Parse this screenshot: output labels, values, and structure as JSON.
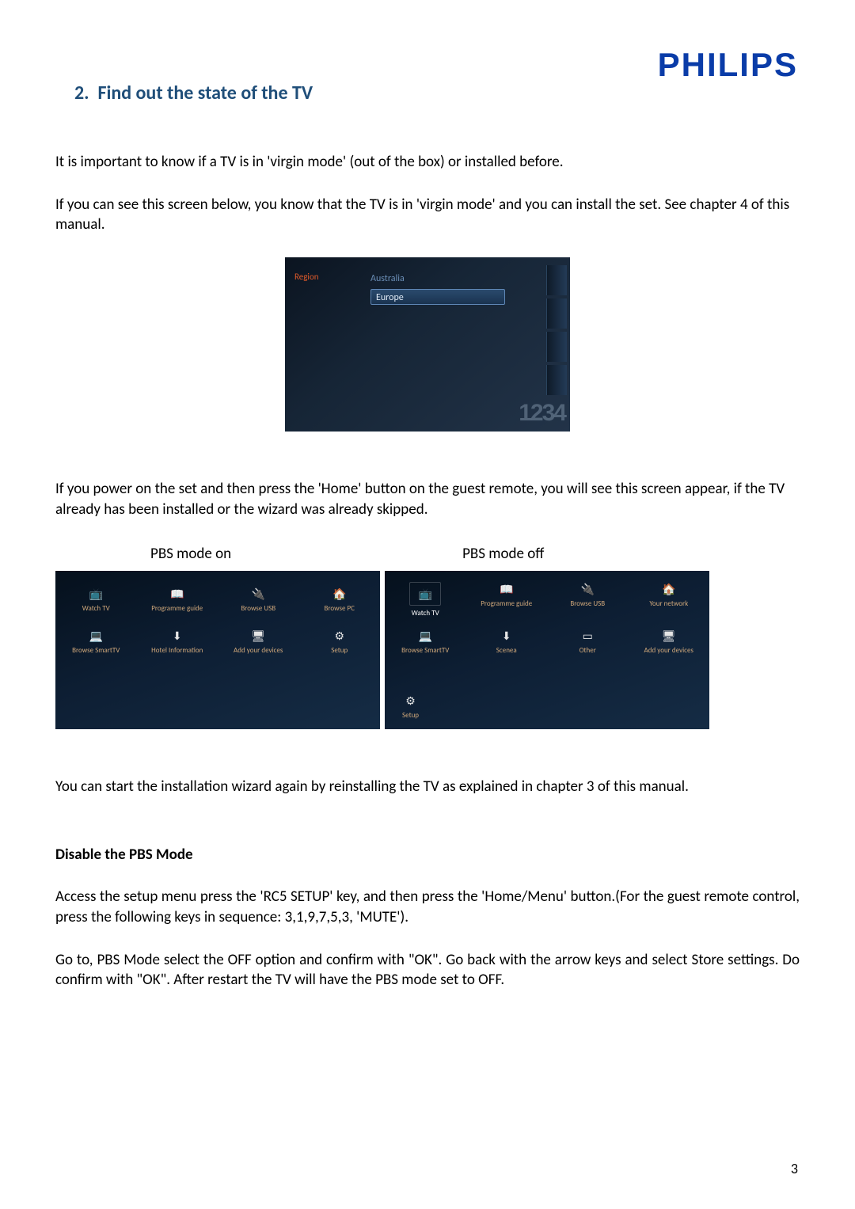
{
  "logo_text": "PHILIPS",
  "section_number": "2.",
  "section_title": "Find out the state of the TV",
  "para1": "It is important to know if a TV is in 'virgin mode' (out of the box) or installed before.",
  "para2": "If you can see this screen below, you know that the TV is in 'virgin mode' and you can install the set. See chapter 4 of this manual.",
  "region_shot": {
    "label": "Region",
    "option_top": "Australia",
    "option_selected": "Europe",
    "decor_numbers": "1234"
  },
  "para3": "If you power on the set and then press the 'Home' button on the guest remote, you will see this screen appear, if the TV already has been installed or the wizard was already skipped.",
  "pbs_on_label": "PBS mode on",
  "pbs_off_label": "PBS mode off",
  "menu_a": {
    "items": [
      {
        "icon": "📺",
        "label": "Watch TV"
      },
      {
        "icon": "📖",
        "label": "Programme guide"
      },
      {
        "icon": "🔌",
        "label": "Browse USB"
      },
      {
        "icon": "🏠",
        "label": "Browse PC"
      },
      {
        "icon": "💻",
        "label": "Browse SmartTV"
      },
      {
        "icon": "⬇",
        "label": "Hotel Information"
      },
      {
        "icon": "🖥",
        "label": "Add your devices"
      },
      {
        "icon": "⚙",
        "label": "Setup"
      }
    ]
  },
  "menu_b": {
    "items": [
      {
        "icon": "📺",
        "label": "Watch TV"
      },
      {
        "icon": "📖",
        "label": "Programme guide"
      },
      {
        "icon": "🔌",
        "label": "Browse USB"
      },
      {
        "icon": "🏠",
        "label": "Your network"
      },
      {
        "icon": "💻",
        "label": "Browse SmartTV"
      },
      {
        "icon": "⬇",
        "label": "Scenea"
      },
      {
        "icon": "▭",
        "label": "Other"
      },
      {
        "icon": "🖥",
        "label": "Add your devices"
      }
    ],
    "setup": {
      "icon": "⚙",
      "label": "Setup"
    }
  },
  "para4": "You can start the installation wizard again by reinstalling the TV as explained in chapter 3 of this manual.",
  "para5_heading": "Disable the PBS Mode",
  "para6": "Access the setup menu press the 'RC5 SETUP' key, and then press the 'Home/Menu' button.(For the guest remote control, press the following keys in sequence: 3,1,9,7,5,3, 'MUTE').",
  "para7": "Go to, PBS Mode select the OFF option and confirm with \"OK\".  Go back with the arrow keys and select Store settings. Do confirm with \"OK\". After restart the TV will have the PBS mode set to OFF.",
  "page_number": "3",
  "colors": {
    "heading": "#1f4e79",
    "logo": "#0a3ca8",
    "tv_bg_dark": "#0b1420",
    "tv_orange": "#e05a2a",
    "icon_label": "#cfa77a"
  }
}
